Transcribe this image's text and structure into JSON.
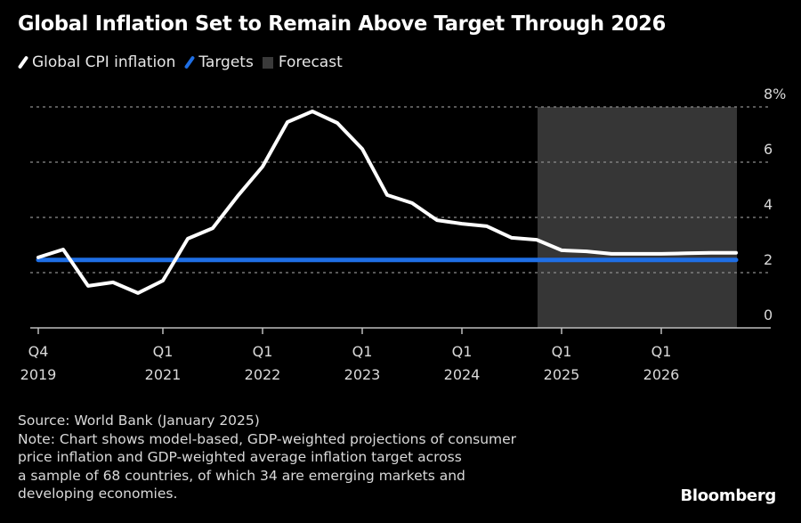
{
  "chart_data": {
    "type": "line",
    "title": "Global Inflation Set to Remain Above Target Through 2026",
    "xlabel": "",
    "ylabel": "",
    "ylim": [
      0,
      8
    ],
    "y_ticks": [
      {
        "value": 0,
        "label": "0"
      },
      {
        "value": 2,
        "label": "2"
      },
      {
        "value": 4,
        "label": "4"
      },
      {
        "value": 6,
        "label": "6"
      },
      {
        "value": 8,
        "label": "8%"
      }
    ],
    "x": [
      "Q4 2019",
      "Q1 2020",
      "Q2 2020",
      "Q3 2020",
      "Q4 2020",
      "Q1 2021",
      "Q2 2021",
      "Q3 2021",
      "Q4 2021",
      "Q1 2022",
      "Q2 2022",
      "Q3 2022",
      "Q4 2022",
      "Q1 2023",
      "Q2 2023",
      "Q3 2023",
      "Q4 2023",
      "Q1 2024",
      "Q2 2024",
      "Q3 2024",
      "Q4 2024",
      "Q1 2025",
      "Q2 2025",
      "Q3 2025",
      "Q4 2025",
      "Q1 2026",
      "Q2 2026",
      "Q3 2026",
      "Q4 2026"
    ],
    "x_ticks": [
      {
        "index": 0,
        "line1": "Q4",
        "line2": "2019"
      },
      {
        "index": 5,
        "line1": "Q1",
        "line2": "2021"
      },
      {
        "index": 9,
        "line1": "Q1",
        "line2": "2022"
      },
      {
        "index": 13,
        "line1": "Q1",
        "line2": "2023"
      },
      {
        "index": 17,
        "line1": "Q1",
        "line2": "2024"
      },
      {
        "index": 21,
        "line1": "Q1",
        "line2": "2025"
      },
      {
        "index": 25,
        "line1": "Q1",
        "line2": "2026"
      }
    ],
    "series": [
      {
        "name": "Global CPI inflation",
        "color": "#ffffff",
        "values": [
          2.55,
          2.84,
          1.52,
          1.65,
          1.26,
          1.71,
          3.23,
          3.61,
          4.77,
          5.84,
          7.45,
          7.84,
          7.42,
          6.48,
          4.81,
          4.52,
          3.9,
          3.77,
          3.68,
          3.26,
          3.19,
          2.81,
          2.77,
          2.68,
          2.68,
          2.68,
          2.7,
          2.72,
          2.72
        ]
      },
      {
        "name": "Targets",
        "color": "#1f6fe5",
        "values": [
          2.46,
          2.46,
          2.46,
          2.46,
          2.46,
          2.46,
          2.46,
          2.46,
          2.46,
          2.46,
          2.46,
          2.46,
          2.46,
          2.46,
          2.46,
          2.46,
          2.46,
          2.46,
          2.46,
          2.46,
          2.46,
          2.46,
          2.46,
          2.46,
          2.46,
          2.46,
          2.46,
          2.46,
          2.46
        ]
      }
    ],
    "forecast": {
      "name": "Forecast",
      "color": "#363636",
      "start": "Q4 2024",
      "end": "Q4 2026"
    },
    "grid": true,
    "legend_position": "top-left"
  },
  "legend": [
    {
      "label": "Global CPI inflation",
      "color": "#ffffff",
      "kind": "line"
    },
    {
      "label": "Targets",
      "color": "#1f6fe5",
      "kind": "line"
    },
    {
      "label": "Forecast",
      "color": "#363636",
      "kind": "box"
    }
  ],
  "footer": {
    "source": "Source: World Bank (January 2025)",
    "note_lines": [
      "Note: Chart shows model-based, GDP-weighted projections of consumer",
      "price inflation and GDP-weighted average inflation target across",
      "a sample of 68 countries, of which 34 are emerging markets and",
      "developing economies."
    ]
  },
  "brand": "Bloomberg"
}
